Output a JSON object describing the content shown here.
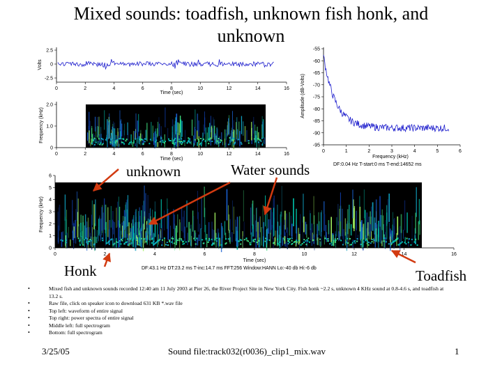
{
  "slide": {
    "title": "Mixed sounds: toadfish, unknown fish honk, and unknown"
  },
  "waveform": {
    "ylabel": "Volts",
    "xlabel": "Time (sec)",
    "y_ticks": [
      "2.5",
      "0",
      "-2.5"
    ],
    "x_ticks": [
      "0",
      "2",
      "4",
      "6",
      "8",
      "10",
      "12",
      "14",
      "16"
    ]
  },
  "mid_spectrogram": {
    "ylabel": "Frequency (kHz)",
    "xlabel": "Time (sec)",
    "y_ticks": [
      "2.0",
      "1.0",
      "0"
    ],
    "x_ticks": [
      "0",
      "2",
      "4",
      "6",
      "8",
      "10",
      "12",
      "14",
      "16"
    ]
  },
  "power_spectrum": {
    "ylabel": "Amplitude (dB-Volts)",
    "xlabel": "Frequency (kHz)",
    "y_ticks": [
      "-55",
      "-60",
      "-65",
      "-70",
      "-75",
      "-80",
      "-85",
      "-90",
      "-95"
    ],
    "x_ticks": [
      "0",
      "1",
      "2",
      "3",
      "4",
      "5",
      "6"
    ],
    "info": "DF:0.04 Hz   T-start:0 ms   T-end:14652 ms"
  },
  "bottom_spectrogram": {
    "ylabel": "Frequency (kHz)",
    "xlabel": "Time (sec)",
    "y_ticks": [
      "6",
      "5",
      "4",
      "3",
      "2",
      "1",
      "0"
    ],
    "x_ticks": [
      "0",
      "2",
      "4",
      "6",
      "8",
      "10",
      "12",
      "14",
      "16"
    ],
    "info": "DF:43.1 Hz    DT:23.2 ms    T-inc:14.7 ms    FFT:256    Window:HANN    Lo:-40 db    Hi:-6 db"
  },
  "annotations": {
    "unknown": "unknown",
    "water": "Water sounds",
    "honk": "Honk",
    "toadfish": "Toadfish",
    "arrow_color": "#d23a10"
  },
  "bullets": [
    "Mixed fish and unknown sounds recorded 12:40 am 11 July 2003 at Pier 26, the River Project Site in New York City. Fish honk ~2.2 s, unknown 4 KHz sound at 0.8-4.6 s, and toadfish at 13.2 s.",
    "Raw file, click on speaker icon to download 631 KB *.wav file",
    "Top left: waveform of entire signal",
    "Top right: power spectra of entire signal",
    "Middle left: full spectrogram",
    "Bottom: full spectrogram"
  ],
  "footer": {
    "date": "3/25/05",
    "file": "Sound file:track032(r0036)_clip1_mix.wav",
    "page": "1"
  },
  "colors": {
    "trace": "#1a1acc",
    "spectrogram_bg": "#000000",
    "spectrogram_hot": "#00e0c0"
  }
}
